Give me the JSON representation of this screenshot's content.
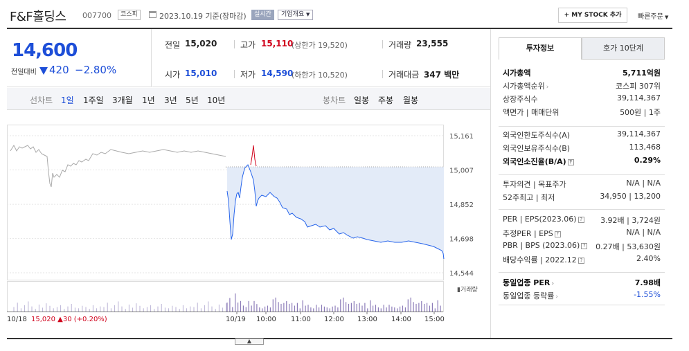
{
  "header": {
    "company": "F&F홀딩스",
    "code": "007700",
    "market_badge": "코스피",
    "date_text": "2023.10.19 기준(장마감)",
    "realtime": "실시간",
    "corp_info": "기업개요",
    "mystock_btn": "+ MY STOCK 추가",
    "quick_order": "빠른주문"
  },
  "price": {
    "current": "14,600",
    "change_label": "전일대비",
    "change_value": "420",
    "change_pct": "−2.80%",
    "direction": "down"
  },
  "stats": {
    "prev_label": "전일",
    "prev_value": "15,020",
    "high_label": "고가",
    "high_value": "15,110",
    "upper_label": "(상한가 19,520)",
    "volume_label": "거래량",
    "volume_value": "23,555",
    "open_label": "시가",
    "open_value": "15,010",
    "low_label": "저가",
    "low_value": "14,590",
    "lower_label": "(하한가 10,520)",
    "amount_label": "거래대금",
    "amount_value": "347 백만"
  },
  "period": {
    "label": "선차트",
    "items": [
      "1일",
      "1주일",
      "3개월",
      "1년",
      "3년",
      "5년",
      "10년"
    ],
    "candle_label": "봉차트",
    "candle_items": [
      "일봉",
      "주봉",
      "월봉"
    ]
  },
  "chart_data": {
    "type": "line",
    "yticks": [
      "15,161",
      "15,007",
      "14,852",
      "14,698",
      "14,544"
    ],
    "xticks": [
      "10/18",
      "10/19",
      "10:00",
      "11:00",
      "12:00",
      "13:00",
      "14:00",
      "15:00"
    ],
    "ylim": [
      14544,
      15161
    ],
    "prev_close": 15020,
    "prev_day_info": "15,020",
    "prev_day_change": "30 (+0.20%)",
    "volume_label": "거래량",
    "colors": {
      "today_line": "#2563eb",
      "area_fill": "#e3ebf8",
      "prev_line": "#aaaaaa",
      "up": "#d0021b",
      "volume": "#8b7bb8"
    }
  },
  "panel": {
    "tabs": [
      "투자정보",
      "호가 10단계"
    ],
    "group1": [
      {
        "label": "시가총액",
        "value": "5,711억원",
        "bold": true
      },
      {
        "label": "시가총액순위",
        "value": "코스피 307위",
        "arrow": true
      },
      {
        "label": "상장주식수",
        "value": "39,114,367"
      },
      {
        "label": "액면가 | 매매단위",
        "value": "500원 | 1주"
      }
    ],
    "group2": [
      {
        "label": "외국인한도주식수(A)",
        "value": "39,114,367"
      },
      {
        "label": "외국인보유주식수(B)",
        "value": "113,468"
      },
      {
        "label": "외국인소진율(B/A)",
        "value": "0.29%",
        "bold": true,
        "q": true
      }
    ],
    "group3": [
      {
        "label": "투자의견 | 목표주가",
        "value": "N/A | N/A"
      },
      {
        "label": "52주최고 | 최저",
        "value": "34,950 | 13,200"
      }
    ],
    "group4": [
      {
        "label": "PER | EPS(2023.06)",
        "value": "3.92배 | 3,724원",
        "q": true
      },
      {
        "label": "추정PER | EPS",
        "value": "N/A | N/A",
        "q": true
      },
      {
        "label": "PBR | BPS (2023.06)",
        "value": "0.27배 | 53,630원",
        "q": true
      },
      {
        "label": "배당수익률 | 2022.12",
        "value": "2.40%",
        "q": true
      }
    ],
    "group5": [
      {
        "label": "동일업종 PER",
        "value": "7.98배",
        "bold": true,
        "arrow": true
      },
      {
        "label": "동일업종 등락률",
        "value": "-1.55%",
        "arrow": true,
        "blue": true
      }
    ]
  }
}
